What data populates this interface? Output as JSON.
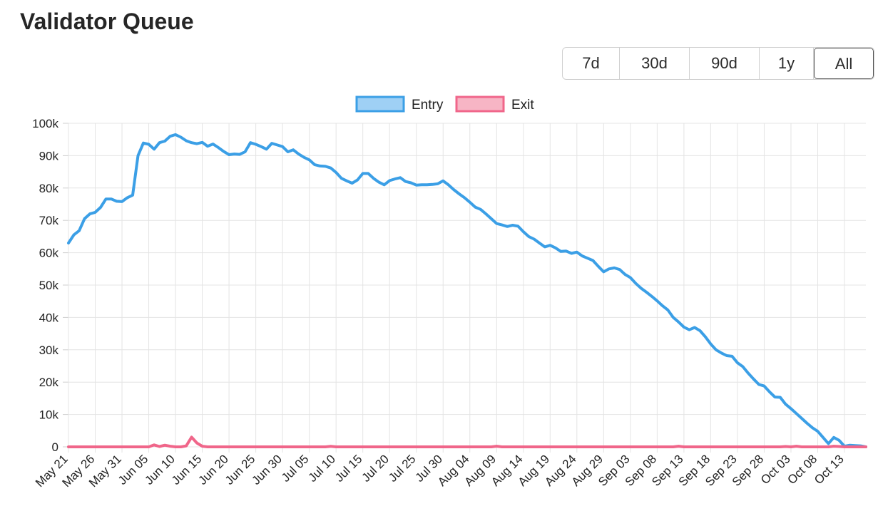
{
  "header": {
    "title": "Validator Queue"
  },
  "range_selector": {
    "options": [
      "7d",
      "30d",
      "90d",
      "1y",
      "All"
    ],
    "selected": "All"
  },
  "colors": {
    "entry_line": "#3b9fe6",
    "entry_fill": "#9fd0f5",
    "exit_line": "#f0668a",
    "exit_fill": "#f7b5c5",
    "grid": "#e4e4e4"
  },
  "chart_data": {
    "type": "line",
    "legend_position": "top-center",
    "grid": true,
    "ylim": [
      0,
      100000
    ],
    "y_ticks": [
      0,
      10000,
      20000,
      30000,
      40000,
      50000,
      60000,
      70000,
      80000,
      90000,
      100000
    ],
    "y_tick_labels": [
      "0",
      "10k",
      "20k",
      "30k",
      "40k",
      "50k",
      "60k",
      "70k",
      "80k",
      "90k",
      "100k"
    ],
    "x_start": "May 21",
    "x_end": "Oct 17",
    "x_tick_labels": [
      "May 21",
      "May 26",
      "May 31",
      "Jun 05",
      "Jun 10",
      "Jun 15",
      "Jun 20",
      "Jun 25",
      "Jun 30",
      "Jul 05",
      "Jul 10",
      "Jul 15",
      "Jul 20",
      "Jul 25",
      "Jul 30",
      "Aug 04",
      "Aug 09",
      "Aug 14",
      "Aug 19",
      "Aug 24",
      "Aug 29",
      "Sep 03",
      "Sep 08",
      "Sep 13",
      "Sep 18",
      "Sep 23",
      "Sep 28",
      "Oct 03",
      "Oct 08",
      "Oct 13"
    ],
    "series": [
      {
        "name": "Entry",
        "points": [
          [
            "May 21",
            63000
          ],
          [
            "May 22",
            65500
          ],
          [
            "May 23",
            66800
          ],
          [
            "May 24",
            70500
          ],
          [
            "May 25",
            72000
          ],
          [
            "May 26",
            72500
          ],
          [
            "May 27",
            74000
          ],
          [
            "May 28",
            76600
          ],
          [
            "May 29",
            76600
          ],
          [
            "May 30",
            75900
          ],
          [
            "May 31",
            75800
          ],
          [
            "Jun 01",
            77000
          ],
          [
            "Jun 02",
            77800
          ],
          [
            "Jun 03",
            90000
          ],
          [
            "Jun 04",
            93900
          ],
          [
            "Jun 05",
            93500
          ],
          [
            "Jun 06",
            92000
          ],
          [
            "Jun 07",
            94000
          ],
          [
            "Jun 08",
            94500
          ],
          [
            "Jun 09",
            96000
          ],
          [
            "Jun 10",
            96500
          ],
          [
            "Jun 11",
            95700
          ],
          [
            "Jun 12",
            94600
          ],
          [
            "Jun 13",
            94000
          ],
          [
            "Jun 14",
            93700
          ],
          [
            "Jun 15",
            94100
          ],
          [
            "Jun 16",
            92900
          ],
          [
            "Jun 17",
            93600
          ],
          [
            "Jun 18",
            92500
          ],
          [
            "Jun 19",
            91300
          ],
          [
            "Jun 20",
            90300
          ],
          [
            "Jun 21",
            90500
          ],
          [
            "Jun 22",
            90400
          ],
          [
            "Jun 23",
            91200
          ],
          [
            "Jun 24",
            94000
          ],
          [
            "Jun 25",
            93500
          ],
          [
            "Jun 26",
            92800
          ],
          [
            "Jun 27",
            92000
          ],
          [
            "Jun 28",
            93800
          ],
          [
            "Jun 29",
            93300
          ],
          [
            "Jun 30",
            92800
          ],
          [
            "Jul 01",
            91200
          ],
          [
            "Jul 02",
            91800
          ],
          [
            "Jul 03",
            90500
          ],
          [
            "Jul 04",
            89500
          ],
          [
            "Jul 05",
            88700
          ],
          [
            "Jul 06",
            87200
          ],
          [
            "Jul 07",
            86800
          ],
          [
            "Jul 08",
            86700
          ],
          [
            "Jul 09",
            86200
          ],
          [
            "Jul 10",
            84800
          ],
          [
            "Jul 11",
            83000
          ],
          [
            "Jul 12",
            82200
          ],
          [
            "Jul 13",
            81500
          ],
          [
            "Jul 14",
            82500
          ],
          [
            "Jul 15",
            84500
          ],
          [
            "Jul 16",
            84500
          ],
          [
            "Jul 17",
            83000
          ],
          [
            "Jul 18",
            81800
          ],
          [
            "Jul 19",
            81000
          ],
          [
            "Jul 20",
            82300
          ],
          [
            "Jul 21",
            82800
          ],
          [
            "Jul 22",
            83200
          ],
          [
            "Jul 23",
            82000
          ],
          [
            "Jul 24",
            81600
          ],
          [
            "Jul 25",
            80900
          ],
          [
            "Jul 26",
            81000
          ],
          [
            "Jul 27",
            81000
          ],
          [
            "Jul 28",
            81100
          ],
          [
            "Jul 29",
            81300
          ],
          [
            "Jul 30",
            82200
          ],
          [
            "Jul 31",
            81000
          ],
          [
            "Aug 01",
            79500
          ],
          [
            "Aug 02",
            78200
          ],
          [
            "Aug 03",
            77000
          ],
          [
            "Aug 04",
            75600
          ],
          [
            "Aug 05",
            74100
          ],
          [
            "Aug 06",
            73400
          ],
          [
            "Aug 07",
            72000
          ],
          [
            "Aug 08",
            70500
          ],
          [
            "Aug 09",
            69000
          ],
          [
            "Aug 10",
            68600
          ],
          [
            "Aug 11",
            68100
          ],
          [
            "Aug 12",
            68500
          ],
          [
            "Aug 13",
            68200
          ],
          [
            "Aug 14",
            66500
          ],
          [
            "Aug 15",
            65000
          ],
          [
            "Aug 16",
            64200
          ],
          [
            "Aug 17",
            63000
          ],
          [
            "Aug 18",
            61800
          ],
          [
            "Aug 19",
            62300
          ],
          [
            "Aug 20",
            61500
          ],
          [
            "Aug 21",
            60400
          ],
          [
            "Aug 22",
            60500
          ],
          [
            "Aug 23",
            59800
          ],
          [
            "Aug 24",
            60200
          ],
          [
            "Aug 25",
            59000
          ],
          [
            "Aug 26",
            58300
          ],
          [
            "Aug 27",
            57600
          ],
          [
            "Aug 28",
            55800
          ],
          [
            "Aug 29",
            54100
          ],
          [
            "Aug 30",
            55000
          ],
          [
            "Aug 31",
            55300
          ],
          [
            "Sep 01",
            54800
          ],
          [
            "Sep 02",
            53300
          ],
          [
            "Sep 03",
            52300
          ],
          [
            "Sep 04",
            50500
          ],
          [
            "Sep 05",
            49000
          ],
          [
            "Sep 06",
            47800
          ],
          [
            "Sep 07",
            46500
          ],
          [
            "Sep 08",
            45100
          ],
          [
            "Sep 09",
            43600
          ],
          [
            "Sep 10",
            42300
          ],
          [
            "Sep 11",
            40000
          ],
          [
            "Sep 12",
            38600
          ],
          [
            "Sep 13",
            37000
          ],
          [
            "Sep 14",
            36200
          ],
          [
            "Sep 15",
            36900
          ],
          [
            "Sep 16",
            35900
          ],
          [
            "Sep 17",
            34000
          ],
          [
            "Sep 18",
            31800
          ],
          [
            "Sep 19",
            30000
          ],
          [
            "Sep 20",
            29000
          ],
          [
            "Sep 21",
            28200
          ],
          [
            "Sep 22",
            28000
          ],
          [
            "Sep 23",
            26000
          ],
          [
            "Sep 24",
            24800
          ],
          [
            "Sep 25",
            22800
          ],
          [
            "Sep 26",
            21000
          ],
          [
            "Sep 27",
            19300
          ],
          [
            "Sep 28",
            18800
          ],
          [
            "Sep 29",
            17000
          ],
          [
            "Sep 30",
            15400
          ],
          [
            "Oct 01",
            15300
          ],
          [
            "Oct 02",
            13200
          ],
          [
            "Oct 03",
            11800
          ],
          [
            "Oct 04",
            10300
          ],
          [
            "Oct 05",
            8800
          ],
          [
            "Oct 06",
            7300
          ],
          [
            "Oct 07",
            5900
          ],
          [
            "Oct 08",
            4800
          ],
          [
            "Oct 09",
            2900
          ],
          [
            "Oct 10",
            1000
          ],
          [
            "Oct 11",
            2900
          ],
          [
            "Oct 12",
            2000
          ],
          [
            "Oct 13",
            200
          ],
          [
            "Oct 14",
            500
          ],
          [
            "Oct 15",
            400
          ],
          [
            "Oct 16",
            300
          ],
          [
            "Oct 17",
            0
          ]
        ]
      },
      {
        "name": "Exit",
        "points": [
          [
            "May 21",
            0
          ],
          [
            "Jun 04",
            0
          ],
          [
            "Jun 05",
            0
          ],
          [
            "Jun 06",
            600
          ],
          [
            "Jun 07",
            100
          ],
          [
            "Jun 08",
            500
          ],
          [
            "Jun 09",
            200
          ],
          [
            "Jun 10",
            0
          ],
          [
            "Jun 11",
            0
          ],
          [
            "Jun 12",
            300
          ],
          [
            "Jun 13",
            3000
          ],
          [
            "Jun 14",
            1200
          ],
          [
            "Jun 15",
            200
          ],
          [
            "Jun 16",
            0
          ],
          [
            "Jul 08",
            0
          ],
          [
            "Jul 09",
            150
          ],
          [
            "Jul 10",
            0
          ],
          [
            "Aug 08",
            0
          ],
          [
            "Aug 09",
            200
          ],
          [
            "Aug 10",
            0
          ],
          [
            "Sep 11",
            0
          ],
          [
            "Sep 12",
            200
          ],
          [
            "Sep 13",
            0
          ],
          [
            "Oct 01",
            0
          ],
          [
            "Oct 02",
            100
          ],
          [
            "Oct 03",
            0
          ],
          [
            "Oct 04",
            200
          ],
          [
            "Oct 05",
            0
          ],
          [
            "Oct 10",
            0
          ],
          [
            "Oct 11",
            200
          ],
          [
            "Oct 12",
            100
          ],
          [
            "Oct 13",
            0
          ],
          [
            "Oct 17",
            0
          ]
        ]
      }
    ]
  }
}
